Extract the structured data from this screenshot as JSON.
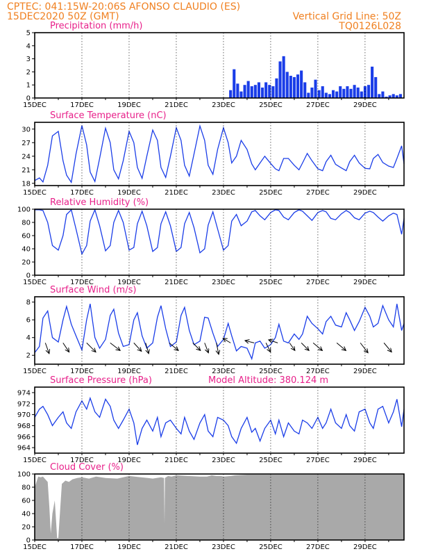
{
  "header": {
    "line1_left": "CPTEC:   041:15W-20:06S   AFONSO CLAUDIO (ES)",
    "line2_left": "15DEC2020 50Z (GMT)",
    "line1_right": "Vertical Grid Line: 50Z",
    "line2_right": "TQ0126L028"
  },
  "colors": {
    "header": "#f08020",
    "panel_title": "#e8208a",
    "series": "#1a3de8",
    "cloud_fill": "#a9a9a9",
    "wind_arrow": "#000000"
  },
  "x_axis": {
    "labels": [
      "15DEC",
      "17DEC",
      "19DEC",
      "21DEC",
      "23DEC",
      "25DEC",
      "27DEC",
      "29DEC"
    ],
    "start_day": 15,
    "end_day": 30.65
  },
  "chart_data": [
    {
      "id": "precip",
      "type": "bar",
      "title": "Precipitation  (mm/h)",
      "ylim": [
        0,
        5
      ],
      "yticks": [
        0,
        1,
        2,
        3,
        4,
        5
      ],
      "x": [
        23.3,
        23.45,
        23.6,
        23.75,
        23.9,
        24.05,
        24.2,
        24.35,
        24.5,
        24.65,
        24.8,
        24.95,
        25.1,
        25.25,
        25.4,
        25.55,
        25.7,
        25.85,
        26.0,
        26.15,
        26.3,
        26.45,
        26.6,
        26.75,
        26.9,
        27.05,
        27.2,
        27.35,
        27.5,
        27.65,
        27.8,
        27.95,
        28.1,
        28.25,
        28.4,
        28.55,
        28.7,
        28.85,
        29.0,
        29.15,
        29.3,
        29.45,
        29.6,
        29.75,
        29.9,
        30.05,
        30.2,
        30.35,
        30.5
      ],
      "values": [
        0.6,
        2.2,
        1.1,
        0.5,
        1.0,
        1.3,
        0.9,
        1.0,
        1.2,
        0.8,
        1.2,
        1.0,
        0.9,
        1.5,
        2.8,
        3.2,
        2.0,
        1.7,
        1.6,
        1.8,
        2.1,
        1.2,
        0.4,
        0.8,
        1.4,
        0.6,
        0.9,
        0.4,
        0.3,
        0.6,
        0.5,
        0.9,
        0.7,
        0.9,
        0.7,
        1.0,
        0.8,
        0.5,
        0.9,
        1.0,
        2.4,
        1.6,
        0.3,
        0.5,
        0.1,
        0.2,
        0.3,
        0.2,
        0.3
      ]
    },
    {
      "id": "temp",
      "type": "line",
      "title": "Surface Temperature (nC)",
      "ylim": [
        17.5,
        31.5
      ],
      "yticks": [
        18,
        21,
        24,
        27,
        30
      ],
      "x": [
        15.0,
        15.2,
        15.35,
        15.55,
        15.75,
        16.0,
        16.2,
        16.35,
        16.55,
        16.75,
        17.0,
        17.2,
        17.35,
        17.55,
        17.75,
        18.0,
        18.2,
        18.35,
        18.55,
        18.75,
        19.0,
        19.2,
        19.35,
        19.55,
        19.75,
        20.0,
        20.2,
        20.35,
        20.55,
        20.75,
        21.0,
        21.2,
        21.35,
        21.55,
        21.75,
        22.0,
        22.2,
        22.35,
        22.55,
        22.75,
        23.0,
        23.2,
        23.35,
        23.55,
        23.75,
        24.0,
        24.2,
        24.35,
        24.55,
        24.75,
        25.0,
        25.2,
        25.35,
        25.55,
        25.75,
        26.0,
        26.2,
        26.35,
        26.55,
        26.75,
        27.0,
        27.2,
        27.35,
        27.55,
        27.75,
        28.0,
        28.2,
        28.35,
        28.55,
        28.75,
        29.0,
        29.2,
        29.35,
        29.55,
        29.75,
        30.0,
        30.2,
        30.35,
        30.55,
        30.65
      ],
      "values": [
        18.6,
        19.2,
        18.3,
        22.0,
        28.5,
        29.5,
        23.0,
        19.8,
        18.2,
        24.5,
        30.8,
        26.5,
        20.5,
        18.4,
        23.5,
        30.2,
        27.0,
        21.0,
        19.0,
        23.0,
        29.5,
        27.0,
        21.5,
        19.1,
        24.0,
        29.8,
        27.5,
        21.5,
        19.3,
        24.0,
        30.3,
        27.5,
        22.0,
        19.6,
        24.5,
        30.7,
        27.5,
        22.0,
        20.0,
        25.5,
        30.3,
        27.0,
        22.5,
        24.0,
        27.5,
        25.5,
        22.3,
        21.0,
        22.5,
        24.0,
        22.4,
        21.2,
        20.8,
        23.5,
        23.5,
        22.0,
        21.0,
        22.5,
        24.6,
        23.0,
        21.2,
        20.8,
        22.8,
        24.2,
        22.2,
        21.4,
        20.8,
        22.8,
        24.2,
        22.5,
        21.3,
        21.2,
        23.5,
        24.4,
        22.6,
        21.8,
        21.5,
        23.5,
        26.3,
        22.3
      ]
    },
    {
      "id": "rh",
      "type": "line",
      "title": "Relative Humidity  (%)",
      "ylim": [
        0,
        100
      ],
      "yticks": [
        0,
        20,
        40,
        60,
        80,
        100
      ],
      "x": [
        15.0,
        15.2,
        15.35,
        15.55,
        15.75,
        16.0,
        16.2,
        16.35,
        16.55,
        16.75,
        17.0,
        17.2,
        17.35,
        17.55,
        17.75,
        18.0,
        18.2,
        18.35,
        18.55,
        18.75,
        19.0,
        19.2,
        19.35,
        19.55,
        19.75,
        20.0,
        20.2,
        20.35,
        20.55,
        20.75,
        21.0,
        21.2,
        21.35,
        21.55,
        21.75,
        22.0,
        22.2,
        22.35,
        22.55,
        22.75,
        23.0,
        23.2,
        23.35,
        23.55,
        23.75,
        24.0,
        24.2,
        24.35,
        24.55,
        24.75,
        25.0,
        25.2,
        25.35,
        25.55,
        25.75,
        26.0,
        26.2,
        26.35,
        26.55,
        26.75,
        27.0,
        27.2,
        27.35,
        27.55,
        27.75,
        28.0,
        28.2,
        28.35,
        28.55,
        28.75,
        29.0,
        29.2,
        29.35,
        29.55,
        29.75,
        30.0,
        30.2,
        30.35,
        30.55,
        30.65
      ],
      "values": [
        99,
        99,
        98,
        80,
        45,
        38,
        60,
        92,
        99,
        70,
        32,
        45,
        82,
        99,
        75,
        37,
        45,
        80,
        98,
        80,
        38,
        42,
        78,
        97,
        75,
        36,
        42,
        78,
        96,
        75,
        36,
        42,
        78,
        95,
        72,
        34,
        40,
        76,
        96,
        70,
        38,
        45,
        82,
        92,
        75,
        82,
        96,
        98,
        90,
        84,
        95,
        99,
        98,
        88,
        84,
        95,
        99,
        97,
        90,
        83,
        95,
        98,
        96,
        86,
        84,
        93,
        98,
        95,
        87,
        84,
        94,
        97,
        95,
        88,
        82,
        90,
        94,
        92,
        62,
        86
      ]
    },
    {
      "id": "wind",
      "type": "line",
      "title": "Surface Wind  (m/s)",
      "ylim": [
        1,
        8.6
      ],
      "yticks": [
        2,
        4,
        6,
        8
      ],
      "x": [
        15.0,
        15.2,
        15.35,
        15.55,
        15.75,
        16.0,
        16.2,
        16.35,
        16.55,
        16.75,
        17.0,
        17.2,
        17.35,
        17.55,
        17.75,
        18.0,
        18.2,
        18.35,
        18.55,
        18.75,
        19.0,
        19.2,
        19.35,
        19.55,
        19.75,
        20.0,
        20.2,
        20.35,
        20.55,
        20.75,
        21.0,
        21.2,
        21.35,
        21.55,
        21.75,
        22.0,
        22.2,
        22.35,
        22.55,
        22.75,
        23.0,
        23.2,
        23.35,
        23.55,
        23.75,
        24.0,
        24.2,
        24.35,
        24.55,
        24.75,
        25.0,
        25.2,
        25.35,
        25.55,
        25.75,
        26.0,
        26.2,
        26.35,
        26.55,
        26.75,
        27.0,
        27.2,
        27.35,
        27.55,
        27.75,
        28.0,
        28.2,
        28.35,
        28.55,
        28.75,
        29.0,
        29.2,
        29.35,
        29.55,
        29.75,
        30.0,
        30.2,
        30.35,
        30.55,
        30.65
      ],
      "values": [
        2.3,
        3.0,
        6.2,
        7.0,
        4.0,
        3.5,
        6.0,
        7.5,
        5.5,
        4.2,
        2.6,
        6.0,
        7.8,
        4.0,
        2.8,
        3.8,
        6.5,
        7.2,
        4.5,
        3.0,
        3.2,
        6.0,
        6.8,
        4.2,
        2.8,
        3.4,
        6.3,
        7.6,
        5.0,
        3.0,
        3.5,
        6.5,
        7.4,
        4.8,
        3.2,
        3.6,
        6.3,
        6.2,
        4.5,
        3.0,
        3.8,
        5.6,
        4.2,
        2.5,
        3.0,
        2.8,
        1.6,
        3.4,
        3.6,
        2.8,
        3.2,
        4.0,
        5.5,
        3.6,
        3.4,
        4.4,
        3.8,
        4.4,
        6.4,
        5.6,
        5.0,
        4.4,
        5.8,
        6.4,
        5.4,
        5.2,
        6.8,
        6.0,
        4.8,
        5.8,
        7.4,
        6.4,
        5.2,
        5.6,
        7.6,
        6.0,
        5.2,
        7.8,
        4.8,
        5.6
      ],
      "arrows": [
        {
          "day": 15.45,
          "u": 0.5,
          "v": -1.4
        },
        {
          "day": 16.2,
          "u": 0.8,
          "v": -1.2
        },
        {
          "day": 17.2,
          "u": 1.2,
          "v": -1.2
        },
        {
          "day": 18.2,
          "u": 1.3,
          "v": -1.0
        },
        {
          "day": 19.2,
          "u": 1.0,
          "v": -1.1
        },
        {
          "day": 19.7,
          "u": 0.4,
          "v": -1.4
        },
        {
          "day": 20.7,
          "u": 1.2,
          "v": -1.0
        },
        {
          "day": 21.7,
          "u": 1.0,
          "v": -1.0
        },
        {
          "day": 22.2,
          "u": 0.5,
          "v": -1.3
        },
        {
          "day": 22.7,
          "u": 0.3,
          "v": -1.5
        },
        {
          "day": 23.3,
          "u": -1.0,
          "v": 0.6
        },
        {
          "day": 24.3,
          "u": -1.2,
          "v": 0.3
        },
        {
          "day": 24.8,
          "u": 0.6,
          "v": -1.2
        },
        {
          "day": 25.3,
          "u": -1.2,
          "v": 0.4
        },
        {
          "day": 25.8,
          "u": 0.7,
          "v": -1.0
        },
        {
          "day": 26.3,
          "u": 1.0,
          "v": -1.0
        },
        {
          "day": 26.8,
          "u": 1.2,
          "v": -1.0
        },
        {
          "day": 27.8,
          "u": 1.2,
          "v": -1.0
        },
        {
          "day": 28.8,
          "u": 1.0,
          "v": -1.3
        },
        {
          "day": 29.8,
          "u": 1.0,
          "v": -1.2
        }
      ]
    },
    {
      "id": "pres",
      "type": "line",
      "title": "Surface Pressure (hPa)",
      "note": "Model Altitude: 380.124  m",
      "ylim": [
        963,
        975
      ],
      "yticks": [
        964,
        966,
        968,
        970,
        972,
        974
      ],
      "x": [
        15.0,
        15.2,
        15.35,
        15.55,
        15.75,
        16.0,
        16.2,
        16.35,
        16.55,
        16.75,
        17.0,
        17.2,
        17.35,
        17.55,
        17.75,
        18.0,
        18.2,
        18.35,
        18.55,
        18.75,
        19.0,
        19.2,
        19.35,
        19.55,
        19.75,
        20.0,
        20.2,
        20.35,
        20.55,
        20.75,
        21.0,
        21.2,
        21.35,
        21.55,
        21.75,
        22.0,
        22.2,
        22.35,
        22.55,
        22.75,
        23.0,
        23.2,
        23.35,
        23.55,
        23.75,
        24.0,
        24.2,
        24.35,
        24.55,
        24.75,
        25.0,
        25.2,
        25.35,
        25.55,
        25.75,
        26.0,
        26.2,
        26.35,
        26.55,
        26.75,
        27.0,
        27.2,
        27.35,
        27.55,
        27.75,
        28.0,
        28.2,
        28.35,
        28.55,
        28.75,
        29.0,
        29.2,
        29.35,
        29.55,
        29.75,
        30.0,
        30.2,
        30.35,
        30.55,
        30.65
      ],
      "values": [
        969.5,
        971.0,
        971.5,
        970.0,
        968.0,
        969.5,
        970.5,
        968.5,
        967.5,
        970.5,
        972.5,
        971.0,
        973.0,
        970.5,
        969.5,
        972.8,
        971.5,
        969.0,
        967.5,
        969.0,
        971.0,
        968.5,
        964.5,
        967.5,
        969.0,
        967.0,
        969.5,
        966.0,
        968.5,
        969.0,
        967.5,
        966.5,
        969.5,
        967.0,
        965.5,
        968.5,
        970.0,
        967.0,
        966.0,
        969.5,
        969.0,
        968.0,
        966.0,
        964.8,
        967.5,
        969.5,
        966.8,
        967.5,
        965.2,
        967.5,
        969.0,
        966.5,
        969.0,
        966.0,
        968.5,
        967.0,
        966.5,
        969.0,
        968.5,
        967.5,
        969.5,
        967.5,
        968.5,
        971.0,
        968.5,
        967.5,
        970.0,
        968.0,
        967.0,
        970.5,
        971.0,
        968.5,
        967.5,
        971.0,
        971.5,
        968.5,
        970.5,
        972.8,
        967.8,
        971.0
      ]
    },
    {
      "id": "cloud",
      "type": "area",
      "title": "Cloud Cover  (%)",
      "ylim": [
        0,
        100
      ],
      "yticks": [
        0,
        20,
        40,
        60,
        80,
        100
      ],
      "x": [
        15.0,
        15.15,
        15.25,
        15.35,
        15.45,
        15.55,
        15.62,
        15.68,
        15.75,
        15.85,
        15.95,
        16.0,
        16.15,
        16.3,
        16.45,
        16.6,
        16.8,
        17.0,
        17.3,
        17.6,
        18.0,
        18.5,
        19.0,
        19.5,
        19.8,
        20.0,
        20.35,
        20.48,
        20.5,
        20.52,
        20.65,
        20.8,
        21.0,
        21.5,
        22.0,
        22.3,
        22.5,
        22.7,
        22.9,
        23.0,
        23.3,
        23.5,
        24.0,
        25.0,
        26.0,
        27.0,
        28.0,
        29.0,
        30.0,
        30.65
      ],
      "values": [
        80,
        96,
        95,
        96,
        92,
        88,
        50,
        10,
        40,
        60,
        3,
        3,
        85,
        90,
        88,
        92,
        94,
        95,
        93,
        96,
        94,
        93,
        97,
        95,
        94,
        93,
        95,
        94,
        25,
        94,
        97,
        96,
        98,
        97,
        96,
        96,
        98,
        97,
        97,
        96,
        97,
        98,
        99,
        99,
        99,
        99,
        99,
        99,
        99,
        99
      ]
    }
  ]
}
